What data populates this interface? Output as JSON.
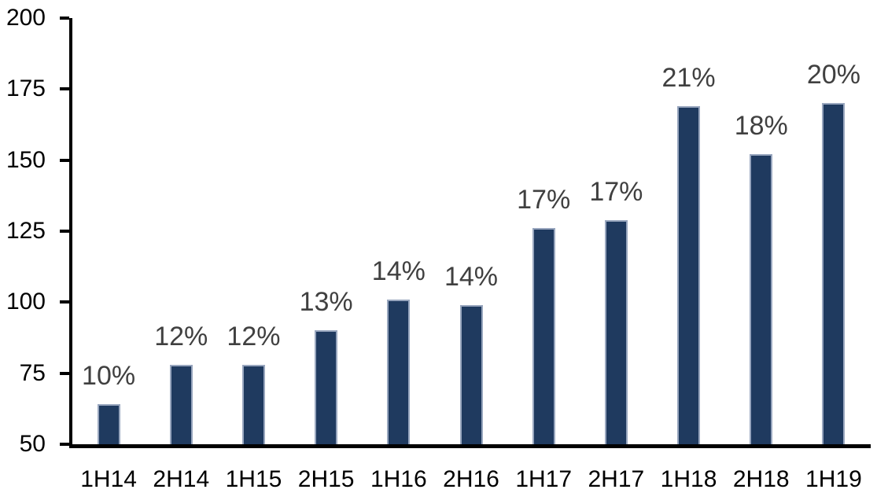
{
  "chart_data": {
    "type": "bar",
    "title": "",
    "xlabel": "",
    "ylabel": "",
    "categories": [
      "1H14",
      "2H14",
      "1H15",
      "2H15",
      "1H16",
      "2H16",
      "1H17",
      "2H17",
      "1H18",
      "2H18",
      "1H19"
    ],
    "values": [
      64,
      78,
      78,
      90,
      101,
      99,
      126,
      129,
      169,
      152,
      170
    ],
    "bar_labels": [
      "10%",
      "12%",
      "12%",
      "13%",
      "14%",
      "14%",
      "17%",
      "17%",
      "21%",
      "18%",
      "20%"
    ],
    "ylim": [
      50,
      200
    ],
    "y_ticks": [
      200,
      175,
      150,
      125,
      100,
      75,
      50
    ],
    "grid": false,
    "legend": false,
    "colors": {
      "bar_fill": "#1F3A5F",
      "bar_border": "#98A6BE",
      "data_label_text": "#404040",
      "axis_text": "#000000",
      "axis_line": "#000000",
      "background": "#FFFFFF"
    }
  }
}
